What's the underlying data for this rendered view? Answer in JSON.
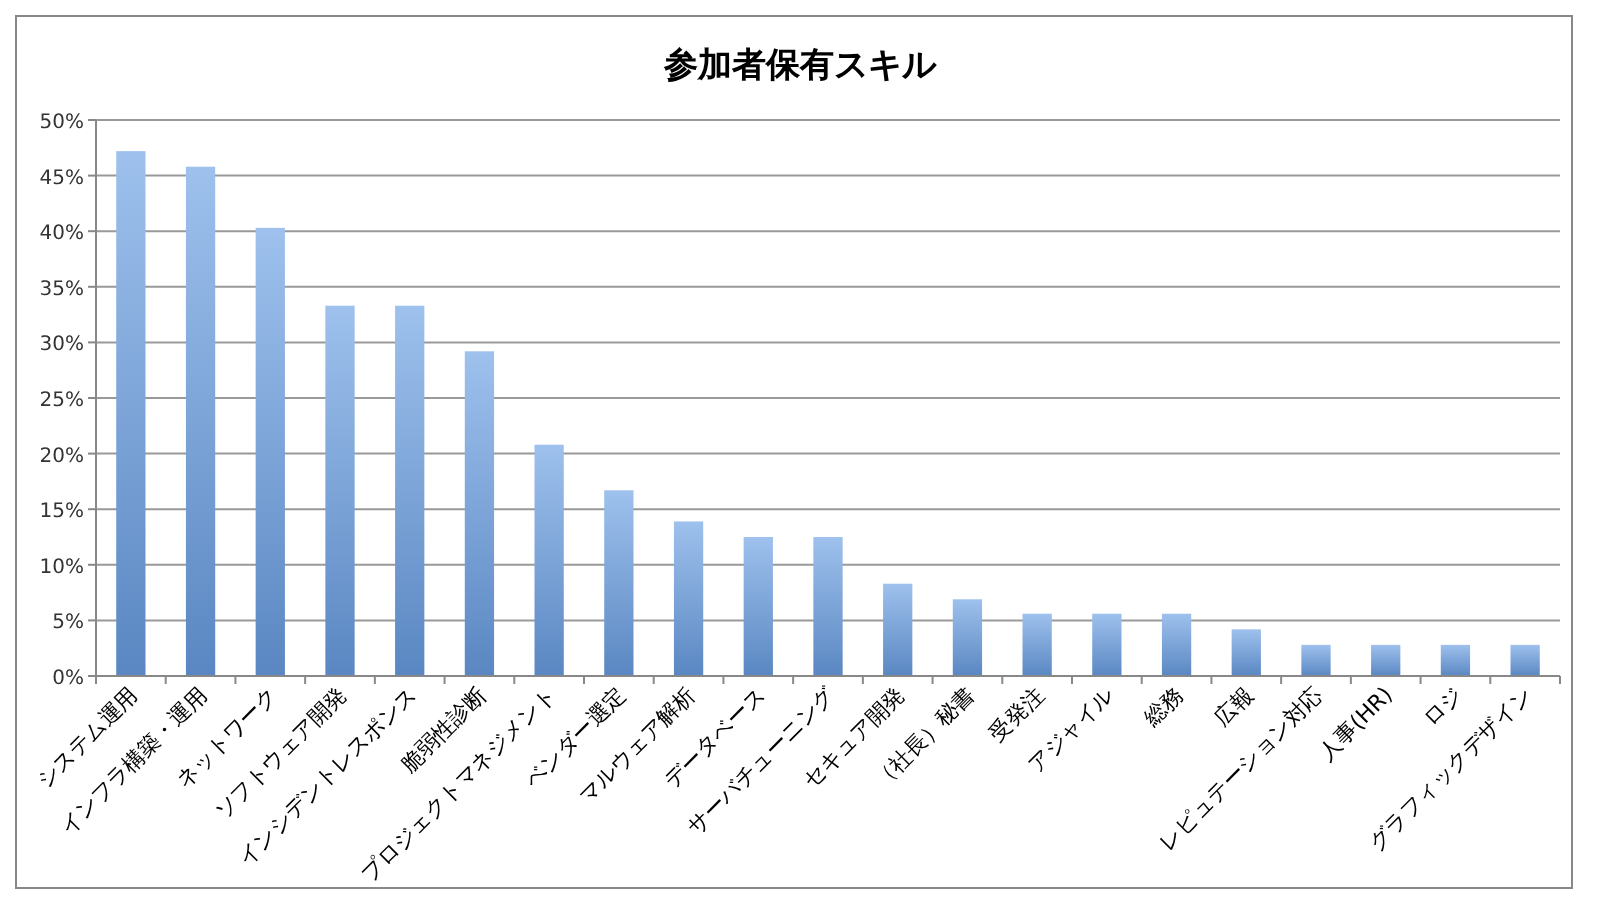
{
  "chart_data": {
    "type": "bar",
    "title": "参加者保有スキル",
    "categories": [
      "システム運用",
      "インフラ構築・運用",
      "ネットワーク",
      "ソフトウェア開発",
      "インシデントレスポンス",
      "脆弱性診断",
      "プロジェクトマネジメント",
      "ベンダー選定",
      "マルウェア解析",
      "データベース",
      "サーバチューニング",
      "セキュア開発",
      "（社長）秘書",
      "受発注",
      "アジャイル",
      "総務",
      "広報",
      "レピュテーション対応",
      "人事(HR)",
      "ロジ",
      "グラフィックデザイン"
    ],
    "values": [
      47.2,
      45.8,
      40.3,
      33.3,
      33.3,
      29.2,
      20.8,
      16.7,
      13.9,
      12.5,
      12.5,
      8.3,
      6.9,
      5.6,
      5.6,
      5.6,
      4.2,
      2.8,
      2.8,
      2.8,
      2.8
    ],
    "color": "#6a9fe4",
    "ylim": [
      0,
      50
    ],
    "yticks": [
      {
        "value": 0,
        "label": "0%"
      },
      {
        "value": 5,
        "label": "5%"
      },
      {
        "value": 10,
        "label": "10%"
      },
      {
        "value": 15,
        "label": "15%"
      },
      {
        "value": 20,
        "label": "20%"
      },
      {
        "value": 25,
        "label": "25%"
      },
      {
        "value": 30,
        "label": "30%"
      },
      {
        "value": 35,
        "label": "35%"
      },
      {
        "value": 40,
        "label": "40%"
      },
      {
        "value": 45,
        "label": "45%"
      },
      {
        "value": 50,
        "label": "50%"
      }
    ],
    "grid": "y"
  }
}
